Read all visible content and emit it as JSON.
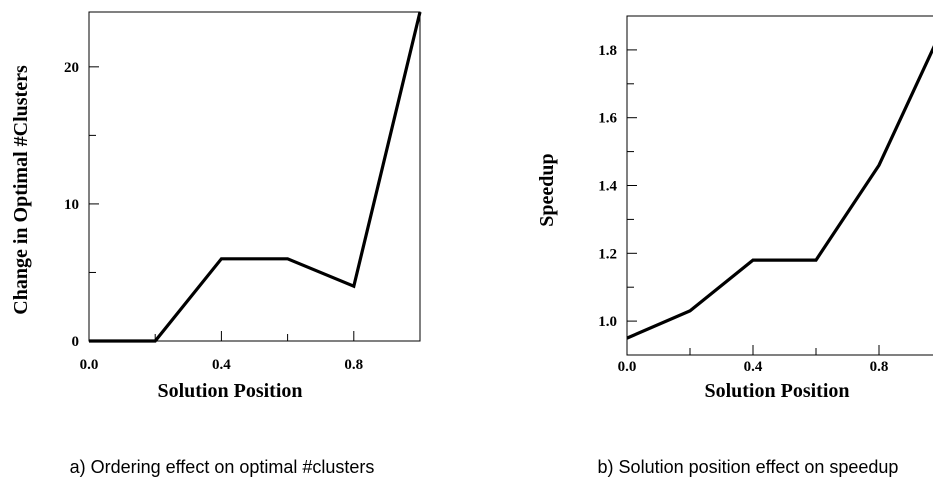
{
  "chart_data": [
    {
      "type": "line",
      "xlabel": "Solution Position",
      "ylabel": "Change in Optimal #Clusters",
      "caption": "a) Ordering effect on optimal #clusters",
      "xlim": [
        0.0,
        1.0
      ],
      "ylim": [
        0,
        24
      ],
      "x_ticks": [
        "0.0",
        "0.4",
        "0.8"
      ],
      "y_ticks": [
        "0",
        "10",
        "20"
      ],
      "series": [
        {
          "x": [
            0.0,
            0.2,
            0.4,
            0.6,
            0.8,
            1.0
          ],
          "y": [
            0,
            0,
            6,
            6,
            4,
            24
          ]
        }
      ]
    },
    {
      "type": "line",
      "xlabel": "Solution Position",
      "ylabel": "Speedup",
      "caption": "b) Solution position effect on speedup",
      "xlim": [
        0.0,
        1.0
      ],
      "ylim": [
        0.9,
        1.9
      ],
      "x_ticks": [
        "0.0",
        "0.4",
        "0.8"
      ],
      "y_ticks": [
        "1.0",
        "1.2",
        "1.4",
        "1.6",
        "1.8"
      ],
      "series": [
        {
          "x": [
            0.0,
            0.2,
            0.4,
            0.6,
            0.8,
            1.0
          ],
          "y": [
            0.95,
            1.03,
            1.18,
            1.18,
            1.46,
            1.86
          ]
        }
      ]
    }
  ]
}
